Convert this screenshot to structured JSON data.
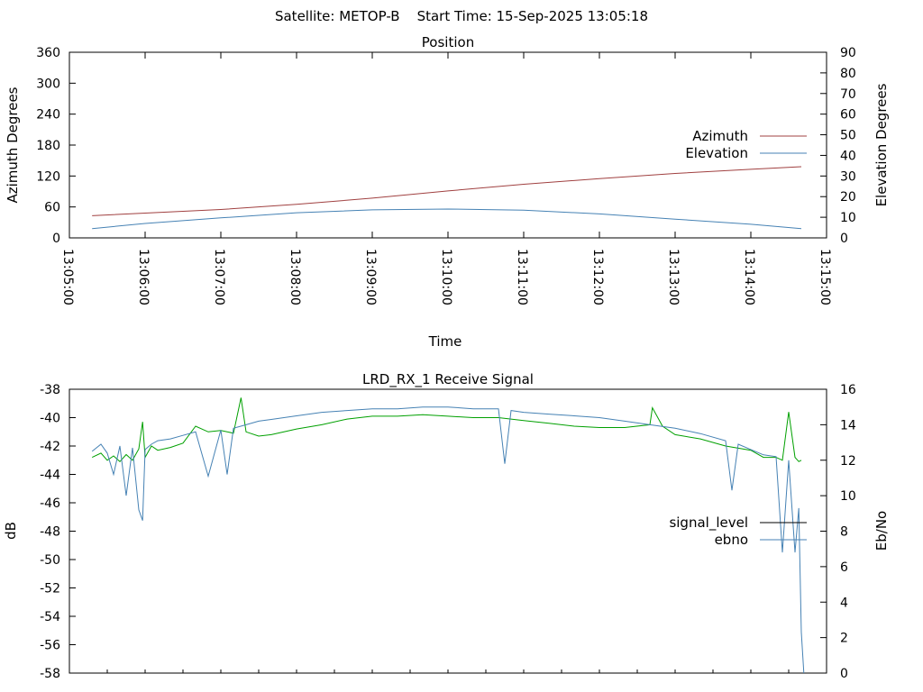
{
  "header": {
    "title": "Satellite: METOP-B    Start Time: 15-Sep-2025 13:05:18"
  },
  "chart_data": [
    {
      "type": "line",
      "title": "Position",
      "xlabel": "Time",
      "ylabel": "Azimuth Degrees",
      "y2label": "Elevation Degrees",
      "x_ticks": [
        "13:05:00",
        "13:06:00",
        "13:07:00",
        "13:08:00",
        "13:09:00",
        "13:10:00",
        "13:11:00",
        "13:12:00",
        "13:13:00",
        "13:14:00",
        "13:15:00"
      ],
      "x_tick_values": [
        0,
        60,
        120,
        180,
        240,
        300,
        360,
        420,
        480,
        540,
        600
      ],
      "xlim": [
        0,
        600
      ],
      "ylim": [
        0,
        360
      ],
      "y_ticks": [
        "0",
        "60",
        "120",
        "180",
        "240",
        "300",
        "360"
      ],
      "y2lim": [
        0,
        90
      ],
      "y2_ticks": [
        "0",
        "10",
        "20",
        "30",
        "40",
        "50",
        "60",
        "70",
        "80",
        "90"
      ],
      "legend_position": "right",
      "series": [
        {
          "name": "Azimuth",
          "axis": "y",
          "color": "#a04040",
          "x": [
            18,
            60,
            120,
            180,
            240,
            300,
            360,
            420,
            480,
            540,
            580
          ],
          "y": [
            43,
            48,
            55,
            65,
            77,
            91,
            104,
            115,
            125,
            133,
            138
          ]
        },
        {
          "name": "Elevation",
          "axis": "y2",
          "color": "#4682b4",
          "x": [
            18,
            60,
            120,
            180,
            240,
            300,
            360,
            420,
            480,
            540,
            580
          ],
          "y": [
            4.5,
            7.0,
            9.7,
            12.2,
            13.6,
            14.0,
            13.4,
            11.6,
            9.1,
            6.6,
            4.5
          ]
        }
      ]
    },
    {
      "type": "line",
      "title": "LRD_RX_1 Receive Signal",
      "ylabel": "dB",
      "y2label": "Eb/No",
      "xlim": [
        0,
        600
      ],
      "ylim": [
        -58,
        -38
      ],
      "y_ticks": [
        "-58",
        "-56",
        "-54",
        "-52",
        "-50",
        "-48",
        "-46",
        "-44",
        "-42",
        "-40",
        "-38"
      ],
      "y2lim": [
        0,
        16
      ],
      "y2_ticks": [
        "0",
        "2",
        "4",
        "6",
        "8",
        "10",
        "12",
        "14",
        "16"
      ],
      "legend_position": "right",
      "series": [
        {
          "name": "signal_level",
          "axis": "y",
          "color": "#00a000",
          "x": [
            18,
            25,
            30,
            35,
            40,
            45,
            50,
            55,
            58,
            60,
            65,
            70,
            80,
            90,
            100,
            110,
            120,
            130,
            136,
            140,
            150,
            160,
            170,
            180,
            200,
            220,
            240,
            260,
            280,
            300,
            320,
            340,
            360,
            380,
            400,
            420,
            440,
            460,
            462,
            470,
            480,
            500,
            520,
            540,
            550,
            560,
            565,
            570,
            575,
            578,
            580
          ],
          "y": [
            -42.8,
            -42.5,
            -43.0,
            -42.7,
            -43.1,
            -42.6,
            -43.0,
            -42.2,
            -40.3,
            -42.8,
            -42.0,
            -42.3,
            -42.1,
            -41.8,
            -40.6,
            -41.0,
            -40.9,
            -41.1,
            -38.6,
            -41.0,
            -41.3,
            -41.2,
            -41.0,
            -40.8,
            -40.5,
            -40.1,
            -39.9,
            -39.9,
            -39.8,
            -39.9,
            -40.0,
            -40.0,
            -40.2,
            -40.4,
            -40.6,
            -40.7,
            -40.7,
            -40.5,
            -39.3,
            -40.6,
            -41.2,
            -41.5,
            -42.0,
            -42.3,
            -42.8,
            -42.8,
            -43.0,
            -39.6,
            -42.8,
            -43.1,
            -43.0
          ]
        },
        {
          "name": "ebno",
          "axis": "y2",
          "color": "#4682b4",
          "x": [
            18,
            25,
            30,
            35,
            40,
            45,
            50,
            55,
            58,
            60,
            65,
            70,
            80,
            90,
            100,
            110,
            120,
            125,
            130,
            140,
            150,
            160,
            170,
            180,
            200,
            220,
            240,
            260,
            280,
            300,
            320,
            340,
            345,
            350,
            360,
            380,
            400,
            420,
            440,
            460,
            480,
            500,
            520,
            525,
            530,
            540,
            550,
            560,
            565,
            570,
            575,
            578,
            580,
            582
          ],
          "y": [
            12.5,
            12.9,
            12.4,
            11.2,
            12.8,
            10.0,
            12.7,
            9.2,
            8.6,
            12.6,
            12.9,
            13.1,
            13.2,
            13.4,
            13.6,
            11.1,
            13.7,
            11.2,
            13.8,
            14.0,
            14.2,
            14.3,
            14.4,
            14.5,
            14.7,
            14.8,
            14.9,
            14.9,
            15.0,
            15.0,
            14.9,
            14.9,
            11.8,
            14.8,
            14.7,
            14.6,
            14.5,
            14.4,
            14.2,
            14.0,
            13.8,
            13.5,
            13.1,
            10.3,
            12.9,
            12.6,
            12.3,
            12.2,
            6.8,
            12.0,
            6.8,
            9.3,
            2.3,
            0.0
          ]
        }
      ]
    }
  ]
}
